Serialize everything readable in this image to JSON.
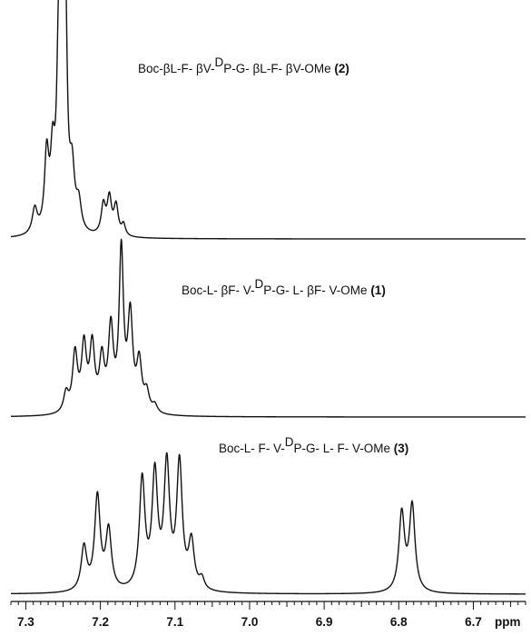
{
  "chart_data": {
    "type": "line",
    "title": "",
    "xlabel": "ppm",
    "ylabel": "",
    "xlim": [
      7.32,
      6.63
    ],
    "x_reversed": true,
    "x_ticks": [
      {
        "value": 7.3,
        "label": "7.3"
      },
      {
        "value": 7.2,
        "label": "7.2"
      },
      {
        "value": 7.1,
        "label": "7.1"
      },
      {
        "value": 7.0,
        "label": "7.0"
      },
      {
        "value": 6.9,
        "label": "6.9"
      },
      {
        "value": 6.8,
        "label": "6.8"
      },
      {
        "value": 6.7,
        "label": "6.7"
      }
    ],
    "grid": false,
    "legend": "none",
    "series": [
      {
        "name_prefix": "Boc-βL-F- βV-",
        "name_sup": "D",
        "name_suffix": "P-G- βL-F- βV-OMe",
        "name_number": "(2)",
        "peaks": [
          {
            "ppm": 7.288,
            "h": 0.11,
            "w": 0.004
          },
          {
            "ppm": 7.272,
            "h": 0.33,
            "w": 0.0035
          },
          {
            "ppm": 7.264,
            "h": 0.3,
            "w": 0.0035
          },
          {
            "ppm": 7.256,
            "h": 0.72,
            "w": 0.003
          },
          {
            "ppm": 7.252,
            "h": 0.6,
            "w": 0.003
          },
          {
            "ppm": 7.247,
            "h": 0.98,
            "w": 0.0028
          },
          {
            "ppm": 7.238,
            "h": 0.25,
            "w": 0.004
          },
          {
            "ppm": 7.229,
            "h": 0.12,
            "w": 0.004
          },
          {
            "ppm": 7.196,
            "h": 0.13,
            "w": 0.0035
          },
          {
            "ppm": 7.188,
            "h": 0.16,
            "w": 0.0035
          },
          {
            "ppm": 7.179,
            "h": 0.13,
            "w": 0.0035
          },
          {
            "ppm": 7.169,
            "h": 0.05,
            "w": 0.003
          }
        ]
      },
      {
        "name_prefix": "Boc-L- βF- V-",
        "name_sup": "D",
        "name_suffix": "P-G- L- βF- V-OMe",
        "name_number": "(1)",
        "peaks": [
          {
            "ppm": 7.246,
            "h": 0.12,
            "w": 0.004
          },
          {
            "ppm": 7.234,
            "h": 0.36,
            "w": 0.004
          },
          {
            "ppm": 7.222,
            "h": 0.4,
            "w": 0.004
          },
          {
            "ppm": 7.211,
            "h": 0.4,
            "w": 0.004
          },
          {
            "ppm": 7.198,
            "h": 0.31,
            "w": 0.004
          },
          {
            "ppm": 7.186,
            "h": 0.5,
            "w": 0.004
          },
          {
            "ppm": 7.172,
            "h": 0.98,
            "w": 0.0035
          },
          {
            "ppm": 7.16,
            "h": 0.58,
            "w": 0.004
          },
          {
            "ppm": 7.148,
            "h": 0.3,
            "w": 0.004
          },
          {
            "ppm": 7.138,
            "h": 0.12,
            "w": 0.004
          },
          {
            "ppm": 7.127,
            "h": 0.05,
            "w": 0.004
          }
        ]
      },
      {
        "name_prefix": "Boc-L- F- V-",
        "name_sup": "D",
        "name_suffix": "P-G- L- F- V-OMe",
        "name_number": "(3)",
        "peaks": [
          {
            "ppm": 7.222,
            "h": 0.28,
            "w": 0.0045
          },
          {
            "ppm": 7.204,
            "h": 0.6,
            "w": 0.0045
          },
          {
            "ppm": 7.189,
            "h": 0.38,
            "w": 0.0045
          },
          {
            "ppm": 7.144,
            "h": 0.7,
            "w": 0.0045
          },
          {
            "ppm": 7.127,
            "h": 0.72,
            "w": 0.0045
          },
          {
            "ppm": 7.111,
            "h": 0.78,
            "w": 0.0045
          },
          {
            "ppm": 7.094,
            "h": 0.8,
            "w": 0.0045
          },
          {
            "ppm": 7.078,
            "h": 0.3,
            "w": 0.0045
          },
          {
            "ppm": 7.064,
            "h": 0.07,
            "w": 0.004
          },
          {
            "ppm": 6.796,
            "h": 0.5,
            "w": 0.0045
          },
          {
            "ppm": 6.782,
            "h": 0.55,
            "w": 0.0045
          }
        ]
      }
    ]
  }
}
